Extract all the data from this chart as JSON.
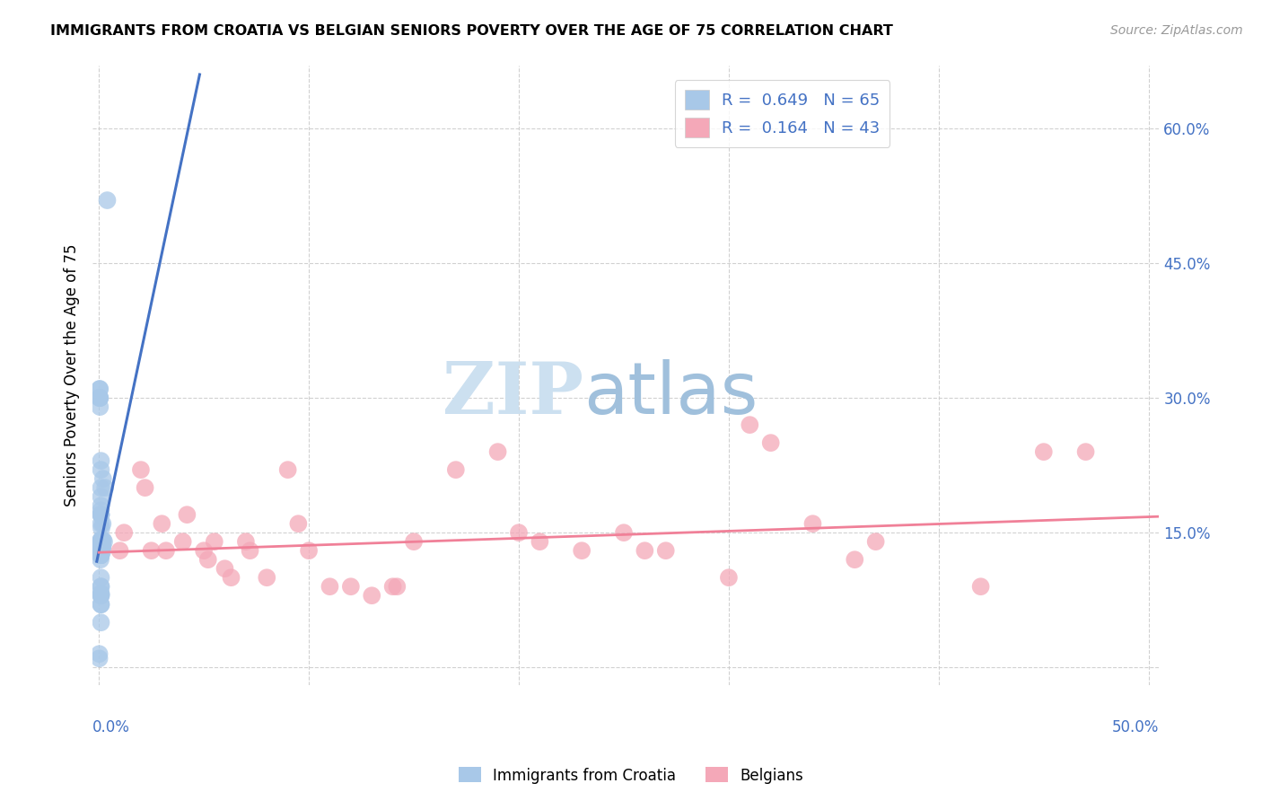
{
  "title": "IMMIGRANTS FROM CROATIA VS BELGIAN SENIORS POVERTY OVER THE AGE OF 75 CORRELATION CHART",
  "source": "Source: ZipAtlas.com",
  "ylabel": "Seniors Poverty Over the Age of 75",
  "yticks": [
    0.0,
    0.15,
    0.3,
    0.45,
    0.6
  ],
  "ytick_labels": [
    "",
    "15.0%",
    "30.0%",
    "45.0%",
    "60.0%"
  ],
  "xticks": [
    0.0,
    0.1,
    0.2,
    0.3,
    0.4,
    0.5
  ],
  "xlim": [
    -0.003,
    0.505
  ],
  "ylim": [
    -0.02,
    0.67
  ],
  "legend1_r": "0.649",
  "legend1_n": "65",
  "legend2_r": "0.164",
  "legend2_n": "43",
  "color_blue": "#a8c8e8",
  "color_pink": "#f4a8b8",
  "color_blue_line": "#4472c4",
  "color_pink_line": "#f08098",
  "blue_scatter_x": [
    0.0018,
    0.0012,
    0.001,
    0.0025,
    0.0008,
    0.001,
    0.0018,
    0.001,
    0.001,
    0.002,
    0.001,
    0.001,
    0.001,
    0.0018,
    0.001,
    0.001,
    0.001,
    0.001,
    0.001,
    0.001,
    0.0008,
    0.0008,
    0.001,
    0.001,
    0.001,
    0.001,
    0.0018,
    0.0012,
    0.001,
    0.001,
    0.001,
    0.001,
    0.001,
    0.001,
    0.001,
    0.003,
    0.002,
    0.001,
    0.001,
    0.001,
    0.001,
    0.001,
    0.001,
    0.001,
    0.001,
    0.001,
    0.001,
    0.001,
    0.0018,
    0.001,
    0.001,
    0.001,
    0.001,
    0.001,
    0.001,
    0.001,
    0.0003,
    0.0005,
    0.0005,
    0.0005,
    0.0005,
    0.0002,
    0.0002,
    0.004,
    0.0003
  ],
  "blue_scatter_y": [
    0.135,
    0.135,
    0.13,
    0.14,
    0.12,
    0.125,
    0.14,
    0.13,
    0.128,
    0.142,
    0.132,
    0.133,
    0.138,
    0.135,
    0.142,
    0.138,
    0.13,
    0.125,
    0.13,
    0.13,
    0.125,
    0.125,
    0.132,
    0.138,
    0.135,
    0.125,
    0.16,
    0.155,
    0.16,
    0.17,
    0.175,
    0.17,
    0.14,
    0.142,
    0.132,
    0.2,
    0.21,
    0.138,
    0.1,
    0.09,
    0.08,
    0.082,
    0.05,
    0.07,
    0.07,
    0.08,
    0.09,
    0.082,
    0.13,
    0.14,
    0.17,
    0.18,
    0.19,
    0.2,
    0.22,
    0.23,
    0.31,
    0.31,
    0.3,
    0.29,
    0.3,
    0.015,
    0.01,
    0.52,
    0.3
  ],
  "pink_scatter_x": [
    0.01,
    0.012,
    0.02,
    0.022,
    0.025,
    0.03,
    0.032,
    0.04,
    0.042,
    0.05,
    0.052,
    0.055,
    0.06,
    0.063,
    0.07,
    0.072,
    0.08,
    0.09,
    0.095,
    0.1,
    0.11,
    0.12,
    0.13,
    0.14,
    0.142,
    0.15,
    0.17,
    0.19,
    0.2,
    0.21,
    0.23,
    0.25,
    0.26,
    0.27,
    0.3,
    0.31,
    0.32,
    0.34,
    0.36,
    0.37,
    0.42,
    0.45,
    0.47
  ],
  "pink_scatter_y": [
    0.13,
    0.15,
    0.22,
    0.2,
    0.13,
    0.16,
    0.13,
    0.14,
    0.17,
    0.13,
    0.12,
    0.14,
    0.11,
    0.1,
    0.14,
    0.13,
    0.1,
    0.22,
    0.16,
    0.13,
    0.09,
    0.09,
    0.08,
    0.09,
    0.09,
    0.14,
    0.22,
    0.24,
    0.15,
    0.14,
    0.13,
    0.15,
    0.13,
    0.13,
    0.1,
    0.27,
    0.25,
    0.16,
    0.12,
    0.14,
    0.09,
    0.24,
    0.24
  ],
  "blue_line_x": [
    -0.001,
    0.048
  ],
  "blue_line_y": [
    0.118,
    0.66
  ],
  "pink_line_x": [
    0.0,
    0.505
  ],
  "pink_line_y": [
    0.128,
    0.168
  ]
}
